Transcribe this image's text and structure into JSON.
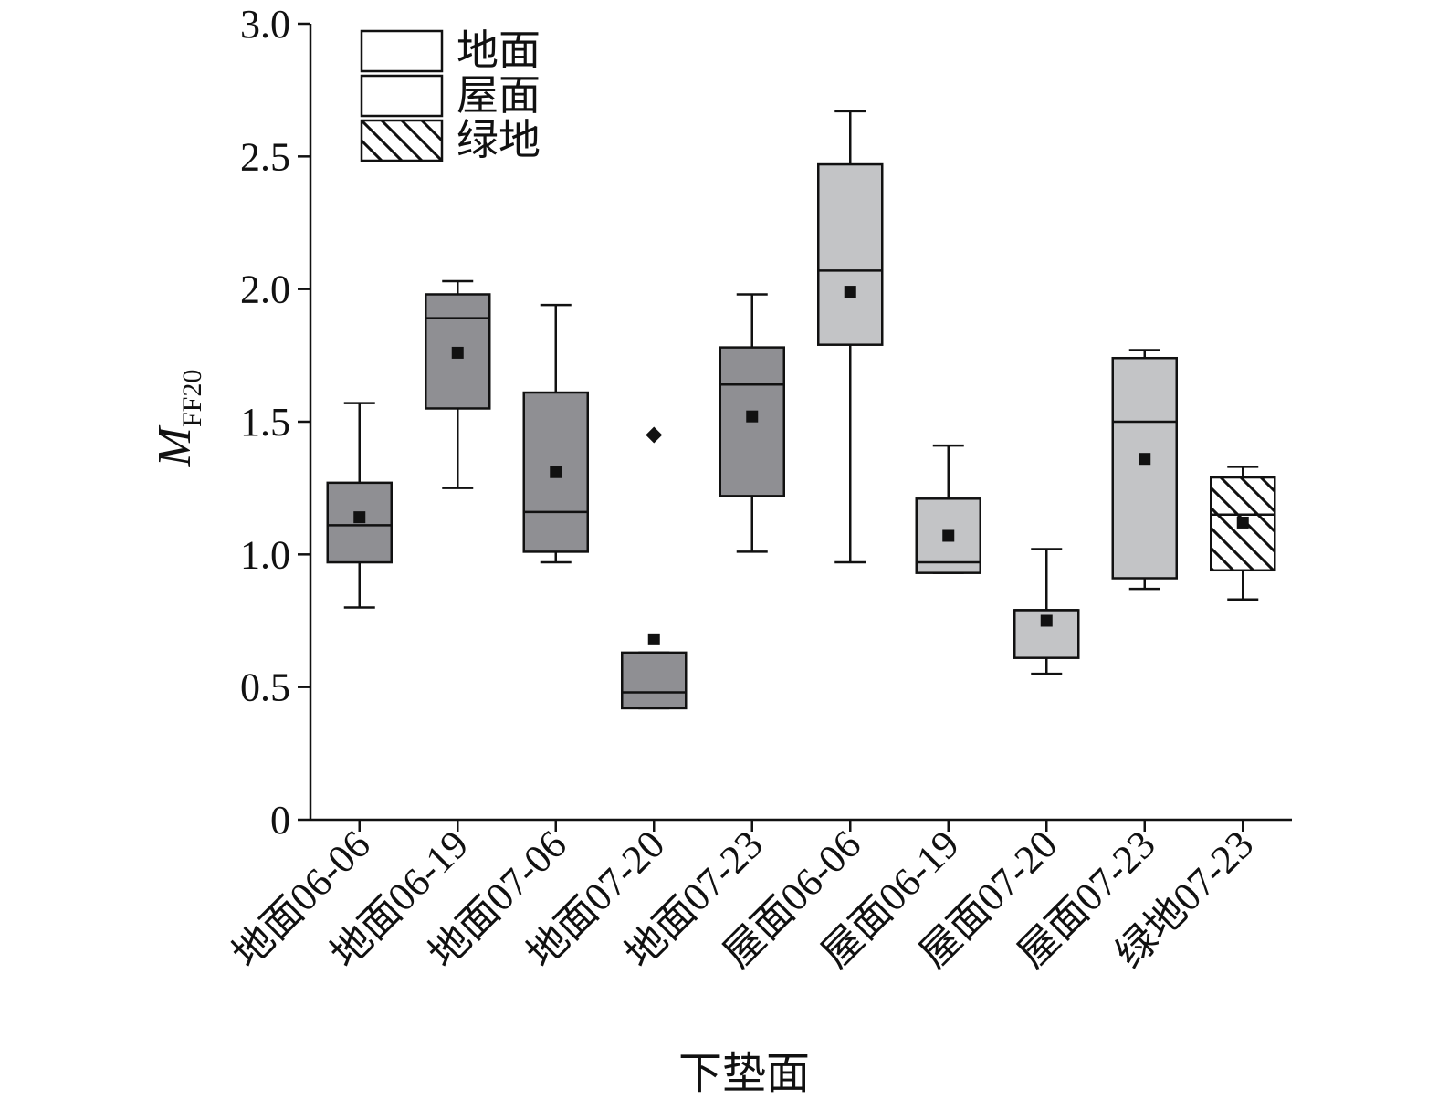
{
  "chart_data": {
    "type": "box",
    "title": "",
    "xlabel": "下垫面",
    "ylabel_main": "M",
    "ylabel_sub": "FF20",
    "ylim": [
      0,
      3.0
    ],
    "yticks": [
      {
        "value": 0,
        "label": "0"
      },
      {
        "value": 0.5,
        "label": "0.5"
      },
      {
        "value": 1.0,
        "label": "1.0"
      },
      {
        "value": 1.5,
        "label": "1.5"
      },
      {
        "value": 2.0,
        "label": "2.0"
      },
      {
        "value": 2.5,
        "label": "2.5"
      },
      {
        "value": 3.0,
        "label": "3.0"
      }
    ],
    "grid": false,
    "legend_position": "top-left",
    "legend": [
      {
        "label": "地面",
        "group": "ground"
      },
      {
        "label": "屋面",
        "group": "roof"
      },
      {
        "label": "绿地",
        "group": "green"
      }
    ],
    "group_styles": {
      "ground": {
        "fill": "#8f8f93",
        "pattern": "none"
      },
      "roof": {
        "fill": "#c3c4c6",
        "pattern": "none"
      },
      "green": {
        "fill": "#ffffff",
        "pattern": "hatch"
      }
    },
    "legend_swatch_fill": "#ffffff",
    "categories": [
      "地面06-06",
      "地面06-19",
      "地面07-06",
      "地面07-20",
      "地面07-23",
      "屋面06-06",
      "屋面06-19",
      "屋面07-20",
      "屋面07-23",
      "绿地07-23"
    ],
    "boxes": [
      {
        "group": "ground",
        "min": 0.8,
        "q1": 0.97,
        "median": 1.11,
        "q3": 1.27,
        "max": 1.57,
        "mean": 1.14,
        "outliers": []
      },
      {
        "group": "ground",
        "min": 1.25,
        "q1": 1.55,
        "median": 1.89,
        "q3": 1.98,
        "max": 2.03,
        "mean": 1.76,
        "outliers": []
      },
      {
        "group": "ground",
        "min": 0.97,
        "q1": 1.01,
        "median": 1.16,
        "q3": 1.61,
        "max": 1.94,
        "mean": 1.31,
        "outliers": []
      },
      {
        "group": "ground",
        "min": 0.42,
        "q1": 0.42,
        "median": 0.48,
        "q3": 0.63,
        "max": 0.63,
        "mean": 0.68,
        "outliers": [
          1.45
        ]
      },
      {
        "group": "ground",
        "min": 1.01,
        "q1": 1.22,
        "median": 1.64,
        "q3": 1.78,
        "max": 1.98,
        "mean": 1.52,
        "outliers": []
      },
      {
        "group": "roof",
        "min": 0.97,
        "q1": 1.79,
        "median": 2.07,
        "q3": 2.47,
        "max": 2.67,
        "mean": 1.99,
        "outliers": []
      },
      {
        "group": "roof",
        "min": 0.93,
        "q1": 0.93,
        "median": 0.97,
        "q3": 1.21,
        "max": 1.41,
        "mean": 1.07,
        "outliers": []
      },
      {
        "group": "roof",
        "min": 0.55,
        "q1": 0.61,
        "median": 0.79,
        "q3": 0.79,
        "max": 1.02,
        "mean": 0.75,
        "outliers": []
      },
      {
        "group": "roof",
        "min": 0.87,
        "q1": 0.91,
        "median": 1.5,
        "q3": 1.74,
        "max": 1.77,
        "mean": 1.36,
        "outliers": []
      },
      {
        "group": "green",
        "min": 0.83,
        "q1": 0.94,
        "median": 1.15,
        "q3": 1.29,
        "max": 1.33,
        "mean": 1.12,
        "outliers": []
      }
    ]
  }
}
